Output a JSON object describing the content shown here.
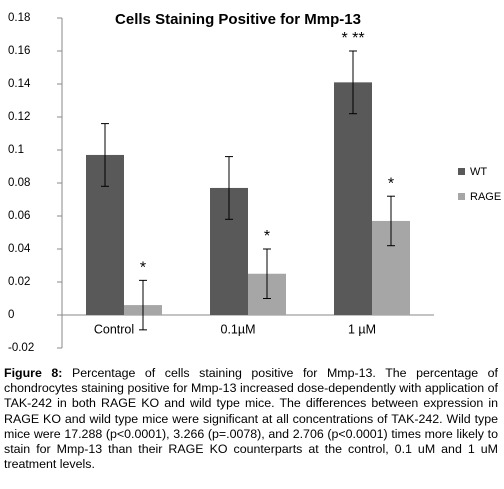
{
  "chart_data": {
    "type": "bar",
    "title": "Cells Staining Positive for Mmp-13",
    "categories": [
      "Control",
      "0.1µM",
      "1 µM"
    ],
    "series": [
      {
        "name": "WT",
        "color": "#595959",
        "values": [
          0.097,
          0.077,
          0.141
        ],
        "errors": [
          0.019,
          0.019,
          0.019
        ],
        "annotations": [
          null,
          null,
          "* **"
        ]
      },
      {
        "name": "RAGE",
        "color": "#a6a6a6",
        "values": [
          0.006,
          0.025,
          0.057
        ],
        "errors": [
          0.015,
          0.015,
          0.015
        ],
        "annotations": [
          "*",
          "*",
          "*"
        ]
      }
    ],
    "ylim": [
      -0.02,
      0.18
    ],
    "yticks": [
      0.18,
      0.16,
      0.14,
      0.12,
      0.1,
      0.08,
      0.06,
      0.04,
      0.02,
      0,
      -0.02
    ],
    "legend": "right"
  },
  "caption": {
    "label": "Figure 8:",
    "text": " Percentage of cells staining positive for Mmp-13. The percentage of chondrocytes staining positive for Mmp-13 increased dose-dependently with application of TAK-242 in both RAGE KO and wild type mice. The differences between expression in RAGE KO and wild type mice were significant at all concentrations of TAK-242. Wild type mice were 17.288 (p<0.0001), 3.266 (p=.0078), and 2.706 (p<0.0001) times more likely to stain for Mmp-13 than their RAGE KO counterparts at the control, 0.1 uM and 1 uM treatment levels."
  }
}
